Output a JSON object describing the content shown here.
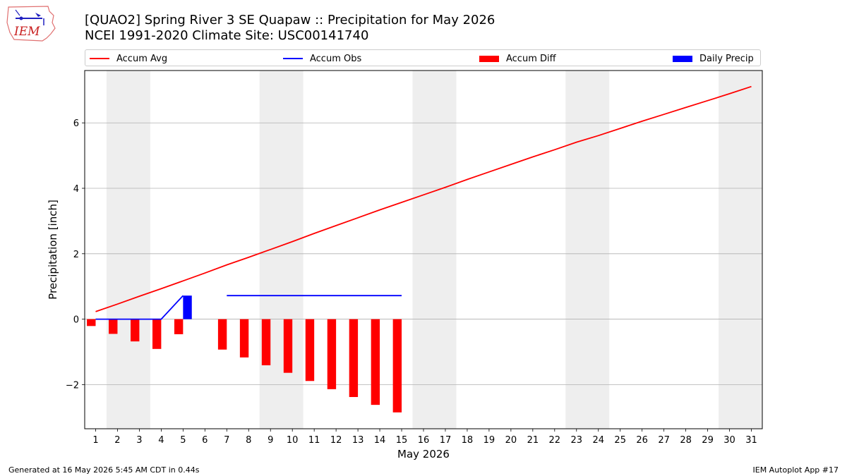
{
  "header": {
    "logo_text": "IEM",
    "title_line1": "[QUAO2] Spring River 3 SE Quapaw :: Precipitation for May 2026",
    "title_line2": "NCEI 1991-2020 Climate Site: USC00141740"
  },
  "footer": {
    "left": "Generated at 16 May 2026 5:45 AM CDT in 0.44s",
    "right": "IEM Autoplot App #17"
  },
  "chart_data": {
    "type": "bar",
    "xlabel": "May 2026",
    "ylabel": "Precipitation [inch]",
    "xlim": [
      0.5,
      31.5
    ],
    "ylim": [
      -3.35,
      7.6
    ],
    "x_ticks": [
      1,
      2,
      3,
      4,
      5,
      6,
      7,
      8,
      9,
      10,
      11,
      12,
      13,
      14,
      15,
      16,
      17,
      18,
      19,
      20,
      21,
      22,
      23,
      24,
      25,
      26,
      27,
      28,
      29,
      30,
      31
    ],
    "y_ticks": [
      -2,
      0,
      2,
      4,
      6
    ],
    "y_tick_labels": [
      "−2",
      "0",
      "2",
      "4",
      "6"
    ],
    "grid": "horizontal",
    "legend": {
      "placement": "top",
      "entries": [
        "Accum Avg",
        "Accum Obs",
        "Accum Diff",
        "Daily Precip"
      ]
    },
    "weekend_shading": [
      [
        1.5,
        3.5
      ],
      [
        8.5,
        10.5
      ],
      [
        15.5,
        17.5
      ],
      [
        22.5,
        24.5
      ],
      [
        29.5,
        31.5
      ]
    ],
    "series": [
      {
        "name": "Accum Avg",
        "kind": "line",
        "color": "#ff0000",
        "x": [
          1,
          2,
          3,
          4,
          5,
          6,
          7,
          8,
          9,
          10,
          11,
          12,
          13,
          14,
          15,
          16,
          17,
          18,
          19,
          20,
          21,
          22,
          23,
          24,
          25,
          26,
          27,
          28,
          29,
          30,
          31
        ],
        "values": [
          0.23,
          0.46,
          0.7,
          0.93,
          1.17,
          1.41,
          1.66,
          1.89,
          2.13,
          2.37,
          2.62,
          2.86,
          3.1,
          3.34,
          3.57,
          3.8,
          4.03,
          4.27,
          4.5,
          4.73,
          4.96,
          5.18,
          5.41,
          5.61,
          5.83,
          6.05,
          6.26,
          6.47,
          6.68,
          6.89,
          7.11
        ]
      },
      {
        "name": "Accum Obs",
        "kind": "line",
        "color": "#0000ff",
        "x": [
          1,
          2,
          3,
          4,
          5,
          7,
          8,
          9,
          10,
          11,
          12,
          13,
          14,
          15
        ],
        "values": [
          0,
          0,
          0,
          0,
          0.72,
          0.72,
          0.72,
          0.72,
          0.72,
          0.72,
          0.72,
          0.72,
          0.72,
          0.72
        ]
      },
      {
        "name": "Accum Diff",
        "kind": "bar",
        "color": "#ff0000",
        "x": [
          1,
          2,
          3,
          4,
          5,
          7,
          8,
          9,
          10,
          11,
          12,
          13,
          14,
          15
        ],
        "values": [
          -0.21,
          -0.45,
          -0.68,
          -0.91,
          -0.46,
          -0.93,
          -1.17,
          -1.41,
          -1.64,
          -1.89,
          -2.14,
          -2.38,
          -2.62,
          -2.85
        ]
      },
      {
        "name": "Daily Precip",
        "kind": "bar",
        "color": "#0000ff",
        "x": [
          5
        ],
        "values": [
          0.72
        ]
      }
    ]
  }
}
